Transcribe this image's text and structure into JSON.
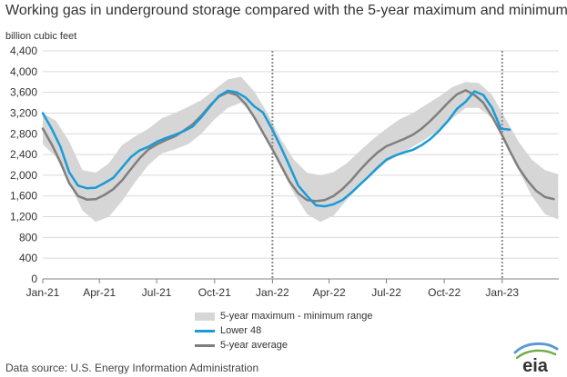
{
  "header": {
    "title": "Working gas in underground  storage compared with the 5-year maximum and minimum",
    "unit": "billion cubic feet"
  },
  "legend": {
    "range_label": "5-year maximum - minimum range",
    "lower48_label": "Lower 48",
    "avg_label": "5-year average"
  },
  "footer": {
    "source": "Data source:  U.S. Energy Information Administration",
    "logo_text": "eia"
  },
  "colors": {
    "lower48": "#1a9bd7",
    "average": "#7f7f7f",
    "range": "#d6d6d6",
    "grid": "#d9d9d9",
    "divider": "#8c8c8c"
  },
  "chart_data": {
    "type": "line",
    "title": "Working gas in underground  storage compared with the 5-year maximum and minimum",
    "ylabel": "billion cubic feet",
    "ylim": [
      0,
      4400
    ],
    "yticks": [
      0,
      400,
      800,
      1200,
      1600,
      2000,
      2400,
      2800,
      3200,
      3600,
      4000,
      4400
    ],
    "ytick_labels": [
      "0",
      "400",
      "800",
      "1,200",
      "1,600",
      "2,000",
      "2,400",
      "2,800",
      "3,200",
      "3,600",
      "4,000",
      "4,400"
    ],
    "xlim": [
      "2021-01-01",
      "2023-04-01"
    ],
    "xticks": [
      "2021-01-01",
      "2021-04-01",
      "2021-07-01",
      "2021-10-01",
      "2022-01-01",
      "2022-04-01",
      "2022-07-01",
      "2022-10-01",
      "2023-01-01"
    ],
    "xtick_labels": [
      "Jan-21",
      "Apr-21",
      "Jul-21",
      "Oct-21",
      "Jan-22",
      "Apr-22",
      "Jul-22",
      "Oct-22",
      "Jan-23"
    ],
    "grid": true,
    "vertical_markers": [
      "2022-01-01",
      "2023-01-01"
    ],
    "series": [
      {
        "name": "5-year maximum - minimum range",
        "kind": "band",
        "x": [
          "2021-01-01",
          "2021-01-22",
          "2021-02-12",
          "2021-03-05",
          "2021-03-26",
          "2021-04-16",
          "2021-05-07",
          "2021-05-28",
          "2021-06-18",
          "2021-07-09",
          "2021-07-30",
          "2021-08-20",
          "2021-09-10",
          "2021-10-01",
          "2021-10-22",
          "2021-11-12",
          "2021-12-03",
          "2021-12-24",
          "2022-01-14",
          "2022-02-04",
          "2022-02-25",
          "2022-03-18",
          "2022-04-08",
          "2022-04-29",
          "2022-05-20",
          "2022-06-10",
          "2022-07-01",
          "2022-07-22",
          "2022-08-12",
          "2022-09-02",
          "2022-09-23",
          "2022-10-14",
          "2022-11-04",
          "2022-11-25",
          "2022-12-16",
          "2023-01-06",
          "2023-01-27",
          "2023-02-17",
          "2023-03-10",
          "2023-03-31"
        ],
        "upper": [
          3200,
          3050,
          2650,
          2100,
          2050,
          2230,
          2580,
          2750,
          2900,
          3100,
          3200,
          3320,
          3450,
          3650,
          3850,
          3900,
          3620,
          3200,
          2700,
          2300,
          2050,
          2000,
          2060,
          2230,
          2470,
          2700,
          2900,
          3080,
          3200,
          3360,
          3520,
          3700,
          3800,
          3780,
          3550,
          3100,
          2650,
          2300,
          2100,
          2020
        ],
        "lower": [
          2600,
          2350,
          1850,
          1320,
          1100,
          1200,
          1500,
          1870,
          2200,
          2420,
          2500,
          2600,
          2800,
          3080,
          3300,
          3400,
          3150,
          2700,
          2150,
          1650,
          1250,
          1100,
          1220,
          1520,
          1800,
          2030,
          2250,
          2400,
          2550,
          2700,
          2880,
          3100,
          3300,
          3300,
          3100,
          2600,
          2100,
          1600,
          1250,
          1150
        ]
      },
      {
        "name": "Lower 48",
        "kind": "line",
        "x": [
          "2021-01-01",
          "2021-01-15",
          "2021-01-29",
          "2021-02-12",
          "2021-02-26",
          "2021-03-12",
          "2021-03-26",
          "2021-04-09",
          "2021-04-23",
          "2021-05-07",
          "2021-05-21",
          "2021-06-04",
          "2021-06-18",
          "2021-07-02",
          "2021-07-16",
          "2021-07-30",
          "2021-08-13",
          "2021-08-27",
          "2021-09-10",
          "2021-09-24",
          "2021-10-08",
          "2021-10-22",
          "2021-11-05",
          "2021-11-19",
          "2021-12-03",
          "2021-12-17",
          "2021-12-31",
          "2022-01-14",
          "2022-01-28",
          "2022-02-11",
          "2022-02-25",
          "2022-03-11",
          "2022-03-25",
          "2022-04-08",
          "2022-04-22",
          "2022-05-06",
          "2022-05-20",
          "2022-06-03",
          "2022-06-17",
          "2022-07-01",
          "2022-07-15",
          "2022-07-29",
          "2022-08-12",
          "2022-08-26",
          "2022-09-09",
          "2022-09-23",
          "2022-10-07",
          "2022-10-21",
          "2022-11-04",
          "2022-11-18",
          "2022-12-02",
          "2022-12-16",
          "2022-12-30",
          "2023-01-13"
        ],
        "values": [
          3200,
          2900,
          2550,
          2060,
          1800,
          1750,
          1760,
          1850,
          1950,
          2150,
          2350,
          2480,
          2550,
          2650,
          2720,
          2780,
          2850,
          2940,
          3120,
          3330,
          3530,
          3630,
          3600,
          3500,
          3330,
          3210,
          2900,
          2550,
          2180,
          1800,
          1600,
          1420,
          1400,
          1440,
          1520,
          1660,
          1820,
          1980,
          2150,
          2300,
          2380,
          2440,
          2490,
          2580,
          2700,
          2860,
          3050,
          3280,
          3420,
          3620,
          3550,
          3300,
          2900,
          2880
        ]
      },
      {
        "name": "5-year average",
        "kind": "line",
        "x": [
          "2021-01-01",
          "2021-01-15",
          "2021-01-29",
          "2021-02-12",
          "2021-02-26",
          "2021-03-12",
          "2021-03-26",
          "2021-04-09",
          "2021-04-23",
          "2021-05-07",
          "2021-05-21",
          "2021-06-04",
          "2021-06-18",
          "2021-07-02",
          "2021-07-16",
          "2021-07-30",
          "2021-08-13",
          "2021-08-27",
          "2021-09-10",
          "2021-09-24",
          "2021-10-08",
          "2021-10-22",
          "2021-11-05",
          "2021-11-19",
          "2021-12-03",
          "2021-12-17",
          "2021-12-31",
          "2022-01-14",
          "2022-01-28",
          "2022-02-11",
          "2022-02-25",
          "2022-03-11",
          "2022-03-25",
          "2022-04-08",
          "2022-04-22",
          "2022-05-06",
          "2022-05-20",
          "2022-06-03",
          "2022-06-17",
          "2022-07-01",
          "2022-07-15",
          "2022-07-29",
          "2022-08-12",
          "2022-08-26",
          "2022-09-09",
          "2022-09-23",
          "2022-10-07",
          "2022-10-21",
          "2022-11-04",
          "2022-11-18",
          "2022-12-02",
          "2022-12-16",
          "2022-12-30",
          "2023-01-13",
          "2023-01-27",
          "2023-02-10",
          "2023-02-24",
          "2023-03-10",
          "2023-03-24"
        ],
        "values": [
          2900,
          2600,
          2250,
          1850,
          1600,
          1530,
          1540,
          1620,
          1730,
          1900,
          2120,
          2330,
          2500,
          2600,
          2680,
          2750,
          2860,
          2980,
          3150,
          3350,
          3520,
          3600,
          3550,
          3380,
          3120,
          2820,
          2520,
          2200,
          1880,
          1650,
          1520,
          1500,
          1520,
          1600,
          1730,
          1900,
          2100,
          2280,
          2440,
          2560,
          2630,
          2700,
          2780,
          2900,
          3050,
          3220,
          3400,
          3560,
          3640,
          3550,
          3400,
          3130,
          2820,
          2470,
          2150,
          1900,
          1700,
          1580,
          1540
        ]
      }
    ]
  }
}
